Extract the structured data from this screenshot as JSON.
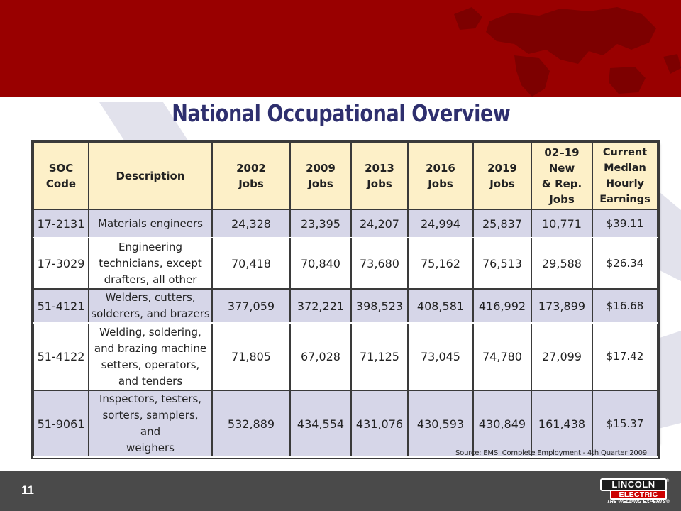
{
  "slide": {
    "title": "National Occupational Overview",
    "source": "Source: EMSI Complete Employment - 4th Quarter 2009",
    "page_number": "11",
    "banner_color": "#990000",
    "footer_color": "#4a4a4a",
    "title_color": "#2e2f6e"
  },
  "logo": {
    "line1": "LINCOLN",
    "line2": "ELECTRIC",
    "registered": "®",
    "tagline": "THE WELDING EXPERTS®"
  },
  "table": {
    "headers": [
      [
        "SOC",
        "Code"
      ],
      [
        "Description"
      ],
      [
        "2002",
        "Jobs"
      ],
      [
        "2009",
        "Jobs"
      ],
      [
        "2013",
        "Jobs"
      ],
      [
        "2016",
        "Jobs"
      ],
      [
        "2019",
        "Jobs"
      ],
      [
        "02–19",
        "New",
        "& Rep.",
        "Jobs"
      ],
      [
        "Current",
        "Median",
        "Hourly",
        "Earnings"
      ]
    ],
    "rows": [
      {
        "code": "17-2131",
        "description": [
          "Materials engineers"
        ],
        "j2002": "24,328",
        "j2009": "23,395",
        "j2013": "24,207",
        "j2016": "24,994",
        "j2019": "25,837",
        "new_rep": "10,771",
        "earnings": "$39.11"
      },
      {
        "code": "17-3029",
        "description": [
          "Engineering",
          "technicians, except",
          "drafters, all other"
        ],
        "j2002": "70,418",
        "j2009": "70,840",
        "j2013": "73,680",
        "j2016": "75,162",
        "j2019": "76,513",
        "new_rep": "29,588",
        "earnings": "$26.34"
      },
      {
        "code": "51-4121",
        "description": [
          "Welders, cutters,",
          "solderers, and brazers"
        ],
        "j2002": "377,059",
        "j2009": "372,221",
        "j2013": "398,523",
        "j2016": "408,581",
        "j2019": "416,992",
        "new_rep": "173,899",
        "earnings": "$16.68"
      },
      {
        "code": "51-4122",
        "description": [
          "Welding, soldering,",
          "and brazing machine",
          "setters, operators,",
          "and tenders"
        ],
        "j2002": "71,805",
        "j2009": "67,028",
        "j2013": "71,125",
        "j2016": "73,045",
        "j2019": "74,780",
        "new_rep": "27,099",
        "earnings": "$17.42"
      },
      {
        "code": "51-9061",
        "description": [
          "Inspectors, testers,",
          "sorters, samplers, and",
          "weighers"
        ],
        "j2002": "532,889",
        "j2009": "434,554",
        "j2013": "431,076",
        "j2016": "430,593",
        "j2019": "430,849",
        "new_rep": "161,438",
        "earnings": "$15.37"
      }
    ]
  }
}
